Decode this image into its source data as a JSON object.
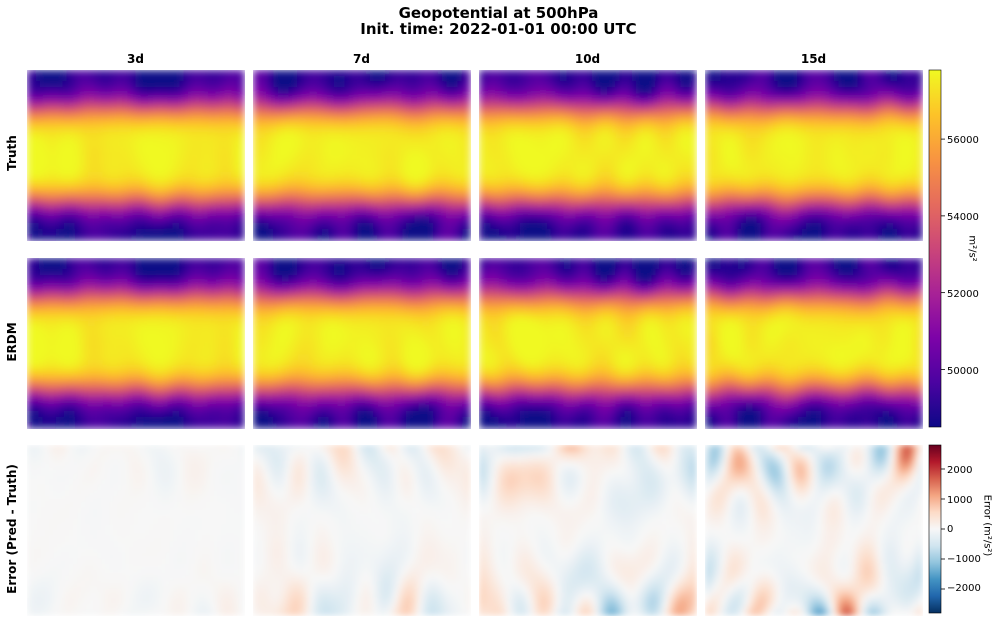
{
  "title_line1": "Geopotential at 500hPa",
  "title_line2": "Init. time: 2022-01-01 00:00 UTC",
  "columns": [
    "3d",
    "7d",
    "10d",
    "15d"
  ],
  "rows": [
    "Truth",
    "ERDM",
    "Error (Pred - Truth)"
  ],
  "colorbar_field": {
    "label": "m²/s²",
    "colormap": "plasma",
    "range": [
      48500,
      57800
    ],
    "ticks": [
      "50000",
      "52000",
      "54000",
      "56000"
    ]
  },
  "colorbar_error": {
    "label": "Error (m²/s²)",
    "colormap": "RdBu_r",
    "range": [
      -2800,
      2800
    ],
    "ticks": [
      "−2000",
      "−1000",
      "0",
      "1000",
      "2000"
    ]
  },
  "chart_data": {
    "type": "heatmap",
    "title": "Geopotential at 500hPa\nInit. time: 2022-01-01 00:00 UTC",
    "x": [
      "3d",
      "7d",
      "10d",
      "15d"
    ],
    "y": [
      "Truth",
      "ERDM",
      "Error (Pred - Truth)"
    ],
    "units_field": "m²/s²",
    "units_error": "Error (m²/s²)",
    "field_range": [
      48500,
      57800
    ],
    "error_range": [
      -2800,
      2800
    ],
    "error_intensity_by_lead": [
      0.12,
      0.55,
      0.85,
      1.0
    ]
  }
}
